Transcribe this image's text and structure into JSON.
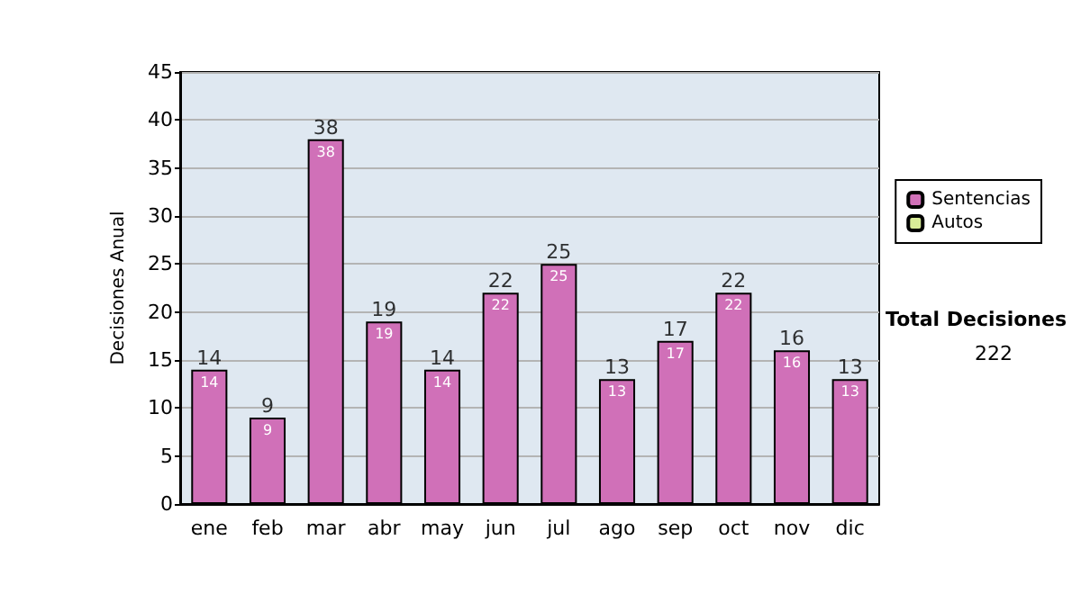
{
  "chart_data": {
    "type": "bar",
    "stacked": true,
    "ylabel": "Decisiones Anual",
    "categories": [
      "ene",
      "feb",
      "mar",
      "abr",
      "may",
      "jun",
      "jul",
      "ago",
      "sep",
      "oct",
      "nov",
      "dic"
    ],
    "series": [
      {
        "name": "Sentencias",
        "color": "#d070b8",
        "values": [
          14,
          9,
          38,
          19,
          14,
          22,
          25,
          13,
          17,
          22,
          16,
          13
        ]
      },
      {
        "name": "Autos",
        "color": "#d8ec98",
        "values": [
          null,
          null,
          null,
          null,
          null,
          null,
          null,
          null,
          null,
          null,
          null,
          null
        ]
      }
    ],
    "totals": [
      "14",
      "9",
      "38",
      "19",
      "14",
      "22",
      "25",
      "13",
      "17",
      "22",
      "16",
      "13"
    ],
    "data_labels": true,
    "ylim": [
      0,
      45
    ],
    "yticks": [
      0,
      5,
      10,
      15,
      20,
      25,
      30,
      35,
      40,
      45
    ],
    "grid": "y",
    "legend": "right",
    "annotations": [
      "Total Decisiones",
      "222"
    ]
  }
}
